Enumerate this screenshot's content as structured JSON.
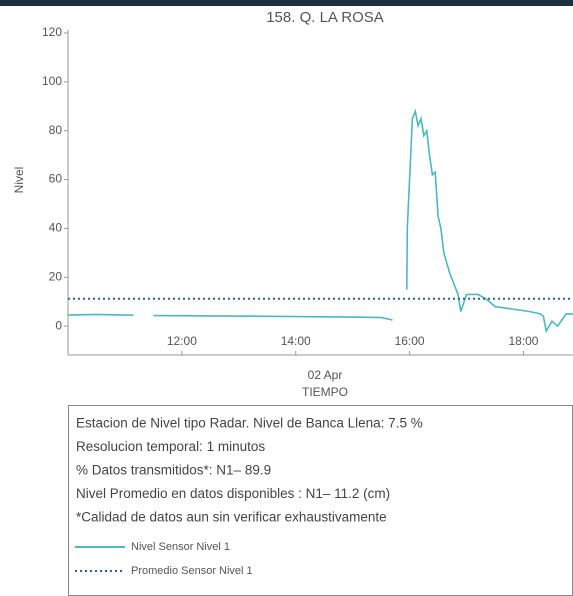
{
  "chart_data": {
    "type": "line",
    "title": "158. Q. LA ROSA",
    "ylabel": "Nivel",
    "xlabel": "TIEMPO",
    "date_label": "02 Apr",
    "xlim": [
      10,
      18.87
    ],
    "ylim": [
      -2,
      120
    ],
    "xticks": [
      {
        "value": 12,
        "label": "12:00"
      },
      {
        "value": 14,
        "label": "14:00"
      },
      {
        "value": 16,
        "label": "16:00"
      },
      {
        "value": 18,
        "label": "18:00"
      }
    ],
    "yticks": [
      0,
      20,
      40,
      60,
      80,
      100,
      120
    ],
    "series": [
      {
        "name": "Nivel Sensor Nivel 1",
        "color": "#4bb8c4",
        "style": "solid",
        "x": [
          10,
          10.5,
          11.0,
          11.15,
          11.3,
          11.5,
          12.5,
          13.5,
          14.5,
          15.0,
          15.5,
          15.7,
          15.8,
          15.95,
          15.96,
          16.05,
          16.1,
          16.15,
          16.2,
          16.25,
          16.3,
          16.35,
          16.4,
          16.45,
          16.5,
          16.55,
          16.6,
          16.7,
          16.8,
          16.85,
          16.9,
          17.0,
          17.2,
          17.35,
          17.5,
          17.8,
          18.1,
          18.3,
          18.35,
          18.4,
          18.5,
          18.6,
          18.75,
          18.87
        ],
        "values": [
          4.5,
          4.8,
          4.5,
          4.5,
          null,
          4.3,
          4.2,
          4,
          3.8,
          3.7,
          3.5,
          2.5,
          null,
          15,
          40,
          85,
          88,
          82,
          85,
          78,
          80,
          70,
          62,
          63,
          45,
          40,
          30,
          22,
          16,
          13,
          6,
          13,
          13,
          11,
          8,
          7,
          6,
          5,
          4,
          -2,
          2,
          0,
          5,
          5
        ]
      },
      {
        "name": "Promedio Sensor Nivel 1",
        "color": "#2f5f9e",
        "style": "dotted",
        "x": [
          10,
          18.87
        ],
        "values": [
          11.2,
          11.2
        ]
      }
    ],
    "info_lines": [
      "Estacion de Nivel tipo Radar. Nivel de Banca Llena:  7.5 %",
      "Resolucion temporal: 1 minutos",
      "% Datos transmitidos*: N1– 89.9",
      "Nivel Promedio en datos disponibles : N1– 11.2 (cm)",
      "*Calidad de datos aun sin verificar exhaustivamente"
    ]
  }
}
